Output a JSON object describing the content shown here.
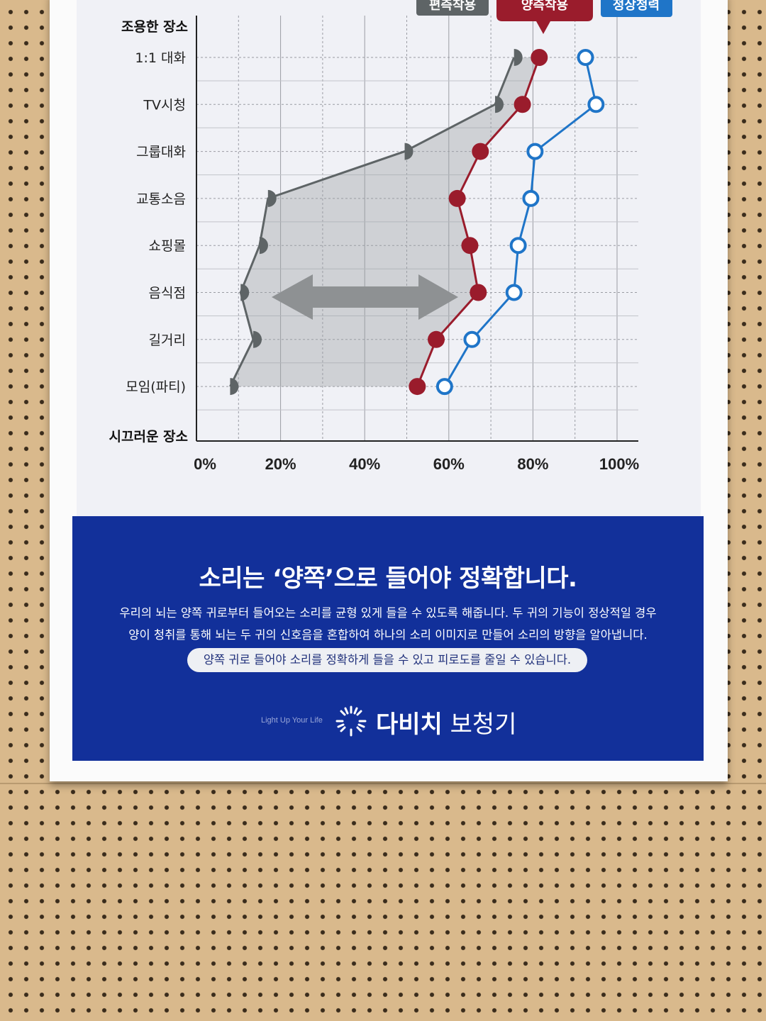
{
  "chart_data": {
    "type": "line",
    "y_axis_title_top": "조용한 장소",
    "y_axis_title_bottom": "시끄러운 장소",
    "categories": [
      "1:1 대화",
      "TV시청",
      "그룹대화",
      "교통소음",
      "쇼핑몰",
      "음식점",
      "길거리",
      "모임(파티)"
    ],
    "x_ticks": [
      "0%",
      "20%",
      "40%",
      "60%",
      "80%",
      "100%"
    ],
    "xlim": [
      0,
      100
    ],
    "grid": true,
    "legend_position": "top",
    "series": [
      {
        "name": "편측착용",
        "color": "#5e6466",
        "marker": "half-disc",
        "fill_area": true,
        "values": [
          75.5,
          71,
          49.5,
          17,
          15,
          10.5,
          13.5,
          8
        ]
      },
      {
        "name": "양측착용",
        "color": "#9a1c2c",
        "marker": "filled-circle",
        "values": [
          81.5,
          77.5,
          67.5,
          62,
          65,
          67,
          57,
          52.5
        ]
      },
      {
        "name": "정상청력",
        "color": "#1f75c8",
        "marker": "hollow-circle",
        "values": [
          92.5,
          95,
          80.5,
          79.5,
          76.5,
          75.5,
          65.5,
          59
        ]
      }
    ]
  },
  "text": {
    "headline": "소리는 ‘양쪽’으로 들어야 정확합니다.",
    "body_line_1": "우리의 뇌는 양쪽 귀로부터 들어오는 소리를 균형 있게 들을 수 있도록 해줍니다. 두 귀의 기능이 정상적일 경우",
    "body_line_2": "양이 청취를 통해 뇌는 두 귀의 신호음을 혼합하여 하나의 소리 이미지로 만들어 소리의 방향을 알아냅니다.",
    "pill": "양쪽 귀로 들어야 소리를 정확하게 들을 수 있고 피로도를 줄일 수 있습니다."
  },
  "brand": {
    "tagline": "Light Up Your Life",
    "name_strong": "다비치",
    "name_light": "보청기",
    "icon": "sunburst-logo-icon"
  },
  "colors": {
    "poster_blue": "#12309a",
    "one_side": "#5e6466",
    "both_sides": "#9a1c2c",
    "normal": "#1f75c8"
  }
}
